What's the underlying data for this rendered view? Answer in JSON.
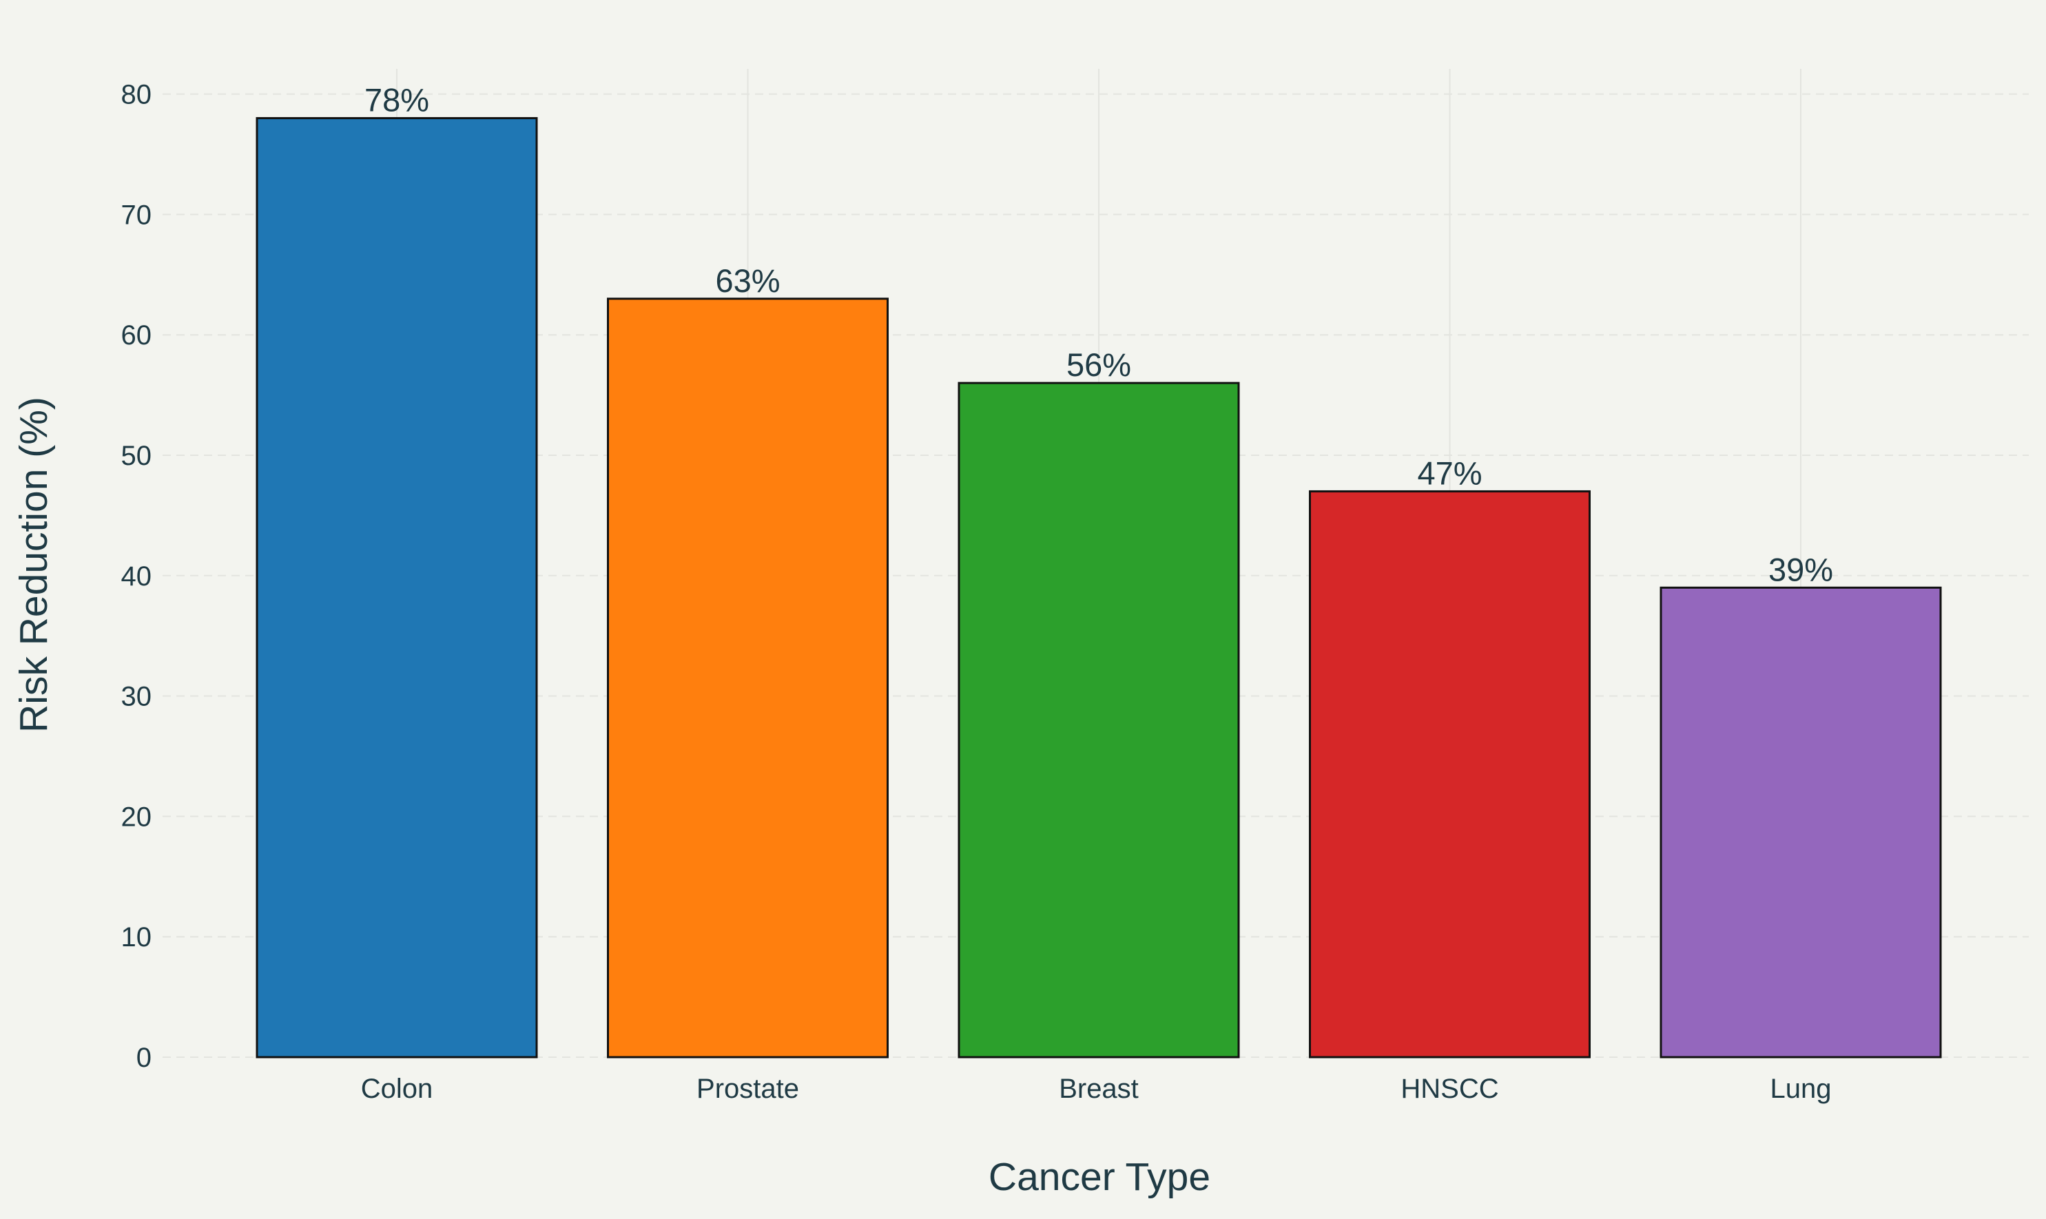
{
  "chart_data": {
    "type": "bar",
    "title": "",
    "xlabel": "Cancer Type",
    "ylabel": "Risk Reduction (%)",
    "categories": [
      "Colon",
      "Prostate",
      "Breast",
      "HNSCC",
      "Lung"
    ],
    "values": [
      78,
      63,
      56,
      47,
      39
    ],
    "value_labels": [
      "78%",
      "63%",
      "56%",
      "47%",
      "39%"
    ],
    "colors": [
      "#1f77b4",
      "#ff7f0e",
      "#2ca02c",
      "#d62728",
      "#9467bd"
    ],
    "bar_outline_color": "#111111",
    "ylim": [
      0,
      82
    ],
    "yticks": [
      0,
      10,
      20,
      30,
      40,
      50,
      60,
      70,
      80
    ],
    "grid": true,
    "legend": "none"
  }
}
